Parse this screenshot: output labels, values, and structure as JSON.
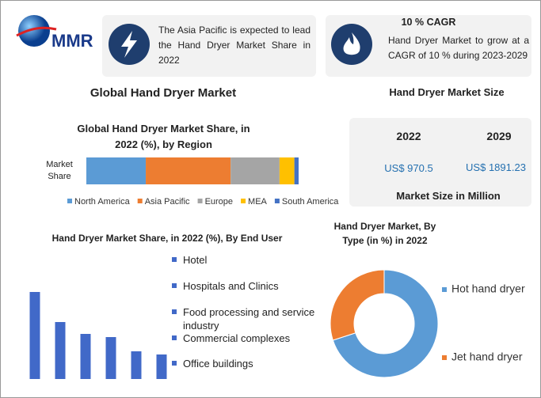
{
  "header": {
    "logo": "MMR",
    "info_left": "The Asia Pacific is expected to lead the Hand Dryer Market Share in 2022",
    "info_right_title": "10 % CAGR",
    "info_right": "Hand Dryer Market to grow at a CAGR of 10 % during 2023-2029"
  },
  "title": "Global Hand Dryer Market",
  "market_size": {
    "title": "Hand Dryer Market Size",
    "years": [
      "2022",
      "2029"
    ],
    "values": [
      "US$ 970.5",
      "US$ 1891.23"
    ],
    "footer": "Market Size in Million"
  },
  "chart_data": [
    {
      "type": "stacked_bar",
      "title": "Global Hand Dryer Market Share, in 2022 (%), by Region",
      "categories": [
        "Market Share"
      ],
      "series": [
        {
          "name": "North America",
          "color": "#5b9bd5",
          "values": [
            28
          ]
        },
        {
          "name": "Asia Pacific",
          "color": "#ed7d31",
          "values": [
            40
          ]
        },
        {
          "name": "Europe",
          "color": "#a5a5a5",
          "values": [
            23
          ]
        },
        {
          "name": "MEA",
          "color": "#ffc000",
          "values": [
            7
          ]
        },
        {
          "name": "South America",
          "color": "#4472c4",
          "values": [
            2
          ]
        }
      ]
    },
    {
      "type": "bar",
      "title": "Hand Dryer Market Share, in 2022 (%), By End User",
      "categories": [
        "Hotel",
        "Hospitals and Clinics",
        "Food processing and service industry",
        "Commercial complexes",
        "Office buildings",
        null
      ],
      "values": [
        110,
        72,
        57,
        53,
        35,
        31
      ],
      "color": "#4169c8"
    },
    {
      "type": "donut",
      "title": "Hand Dryer Market, By Type (in %) in 2022",
      "categories": [
        "Hot hand dryer",
        "Jet hand dryer"
      ],
      "values": [
        70,
        30
      ],
      "colors": [
        "#5b9bd5",
        "#ed7d31"
      ]
    }
  ]
}
